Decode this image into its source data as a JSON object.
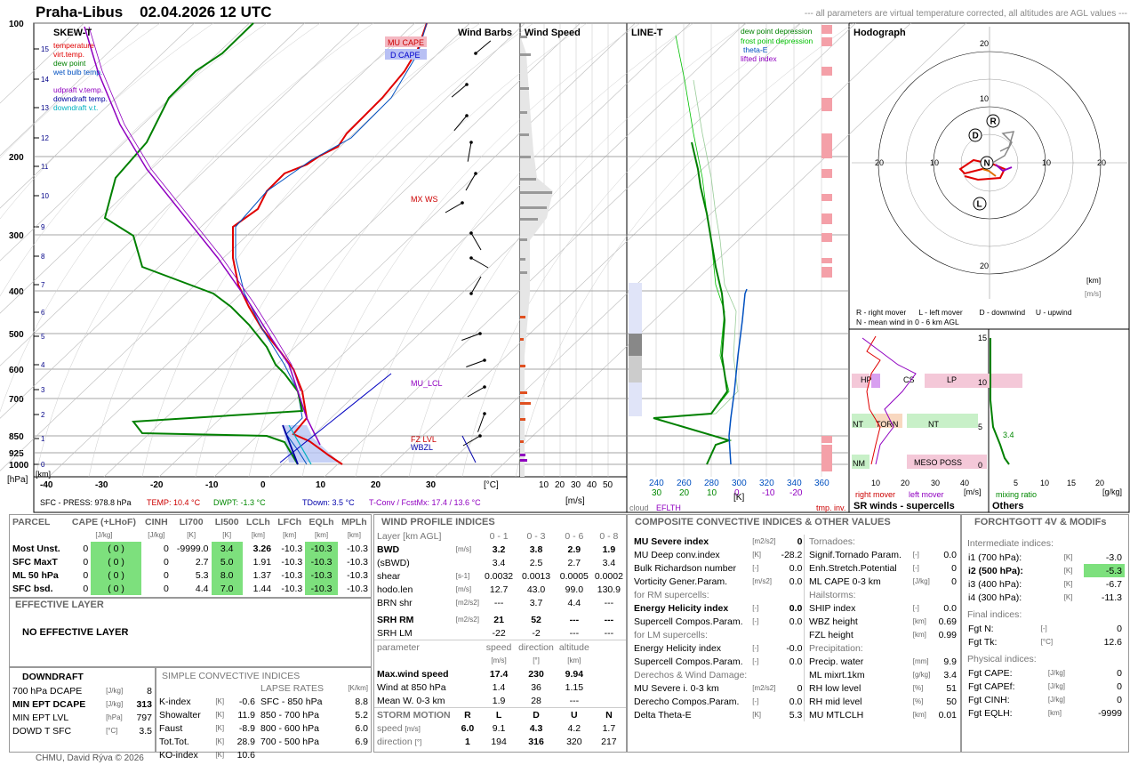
{
  "header": {
    "station": "Praha-Libus",
    "datetime": "02.04.2026 12 UTC",
    "note": "--- all parameters are virtual temperature corrected, all altitudes are AGL values ---"
  },
  "skewt": {
    "title": "SKEW-T",
    "legend": [
      {
        "label": "temperature",
        "color": "#e00000"
      },
      {
        "label": "virt.temp.",
        "color": "#e00000"
      },
      {
        "label": "dew point",
        "color": "#008000"
      },
      {
        "label": "wet bulb temp.",
        "color": "#0050c0"
      },
      {
        "label": "udpraft v.temp.",
        "color": "#9000c0"
      },
      {
        "label": "downdraft temp.",
        "color": "#0000a0"
      },
      {
        "label": "downdraft v.t.",
        "color": "#00b0c0"
      }
    ],
    "p_labels": [
      "100",
      "200",
      "300",
      "400",
      "500",
      "600",
      "700",
      "850",
      "925",
      "1000"
    ],
    "km_labels": [
      "15",
      "14",
      "13",
      "12",
      "11",
      "10",
      "9",
      "8",
      "7",
      "6",
      "5",
      "4",
      "3",
      "2",
      "1",
      "0"
    ],
    "t_labels": [
      "-40",
      "-30",
      "-20",
      "-10",
      "0",
      "10",
      "20",
      "30"
    ],
    "t_unit": "[°C]",
    "km_unit": "[km]",
    "p_unit": "[hPa]",
    "annotations": {
      "mu_cape": "MU CAPE",
      "d_cape": "D CAPE",
      "mx_ws": "MX WS",
      "mu_lcl": "MU_LCL",
      "fz_lvl": "FZ LVL",
      "wbzl": "WBZL"
    },
    "status": {
      "sfc_press": "SFC - PRESS: 978.8 hPa",
      "temp": "TEMP: 10.4 °C",
      "dwpt": "DWPT: -1.3 °C",
      "tdown": "TDown: 3.5 °C",
      "tconv": "T-Conv / FcstMx: 17.4 / 13.6 °C"
    }
  },
  "windbarbs": {
    "title": "Wind Barbs"
  },
  "windspeed": {
    "title": "Wind Speed",
    "ticks": [
      "10",
      "20",
      "30",
      "40",
      "50"
    ],
    "unit": "[m/s]"
  },
  "linet": {
    "title": "LINE-T",
    "legend": [
      {
        "label": "dew point depression",
        "color": "#008000"
      },
      {
        "label": "frost point depression",
        "color": "#00c000"
      },
      {
        "label": "theta-E",
        "color": "#0050c0"
      },
      {
        "label": "lifted index",
        "color": "#9000c0"
      }
    ],
    "ticks_top": [
      "240",
      "260",
      "280",
      "300",
      "320",
      "340",
      "360"
    ],
    "ticks_bottom": [
      "30",
      "20",
      "10",
      "0",
      "-10",
      "-20"
    ],
    "unit": "[K]",
    "cloud": "cloud",
    "eflth": "EFLTH",
    "tmp_inv": "tmp. inv."
  },
  "hodograph": {
    "title": "Hodograph",
    "ring_labels": [
      "20",
      "10",
      "10",
      "20"
    ],
    "unit_km": "[km]",
    "unit_ms": "[m/s]",
    "legend1": "R - right mover      L - left mover        D - downwind     U - upwind",
    "legend2": "N - mean wind in 0 - 6 km AGL",
    "markers": [
      "R",
      "D",
      "N",
      "L"
    ]
  },
  "srwinds": {
    "title": "SR winds - supercells",
    "y_ticks": [
      "15",
      "10",
      "5",
      "0"
    ],
    "x_ticks": [
      "10",
      "20",
      "30",
      "40"
    ],
    "unit": "[m/s]",
    "right_mover": "right mover",
    "left_mover": "left mover",
    "zones": [
      "HP",
      "CS",
      "LP",
      "NT",
      "TORN",
      "NT",
      "NM",
      "MESO POSS"
    ]
  },
  "others": {
    "title": "Others",
    "x_ticks": [
      "5",
      "10",
      "15",
      "20"
    ],
    "unit": "[g/kg]",
    "xlabel": "mixing ratio",
    "value": "3.4"
  },
  "parcel": {
    "title": "PARCEL",
    "headers": [
      "CAPE (+LHoF)",
      "CINH",
      "LI700",
      "LI500",
      "LCLh",
      "LFCh",
      "EQLh",
      "MPLh"
    ],
    "units": [
      "[J/kg]",
      "[J/kg]",
      "[K]",
      "[K]",
      "[km]",
      "[km]",
      "[km]",
      "[km]"
    ],
    "rows": [
      {
        "name": "Most Unst.",
        "cape": "0",
        "lhof": "( 0 )",
        "cinh": "0",
        "li700": "-9999.0",
        "li500": "3.4",
        "lclh": "3.26",
        "lfch": "-10.3",
        "eqlh": "-10.3",
        "mplh": "-10.3"
      },
      {
        "name": "SFC MaxT",
        "cape": "0",
        "lhof": "( 0 )",
        "cinh": "0",
        "li700": "2.7",
        "li500": "5.0",
        "lclh": "1.91",
        "lfch": "-10.3",
        "eqlh": "-10.3",
        "mplh": "-10.3"
      },
      {
        "name": "ML 50 hPa",
        "cape": "0",
        "lhof": "( 0 )",
        "cinh": "0",
        "li700": "5.3",
        "li500": "8.0",
        "lclh": "1.37",
        "lfch": "-10.3",
        "eqlh": "-10.3",
        "mplh": "-10.3"
      },
      {
        "name": "SFC bsd.",
        "cape": "0",
        "lhof": "( 0 )",
        "cinh": "0",
        "li700": "4.4",
        "li500": "7.0",
        "lclh": "1.44",
        "lfch": "-10.3",
        "eqlh": "-10.3",
        "mplh": "-10.3"
      }
    ]
  },
  "effective": {
    "title": "EFFECTIVE LAYER",
    "text": "NO EFFECTIVE LAYER"
  },
  "downdraft": {
    "title": "DOWNDRAFT",
    "rows": [
      {
        "label": "700 hPa DCAPE",
        "unit": "[J/kg]",
        "value": "8"
      },
      {
        "label": "MIN EPT DCAPE",
        "unit": "[J/kg]",
        "value": "313"
      },
      {
        "label": "MIN EPT LVL",
        "unit": "[hPa]",
        "value": "797"
      },
      {
        "label": "DOWD T SFC",
        "unit": "[°C]",
        "value": "3.5"
      }
    ]
  },
  "simple": {
    "title": "SIMPLE CONVECTIVE INDICES",
    "rows": [
      {
        "label": "K-index",
        "unit": "[K]",
        "value": "-0.6",
        "lr": "SFC - 850 hPa",
        "lrv": "8.8"
      },
      {
        "label": "Showalter",
        "unit": "[K]",
        "value": "11.9",
        "lr": "850 - 700 hPa",
        "lrv": "5.2"
      },
      {
        "label": "Faust",
        "unit": "[K]",
        "value": "-8.9",
        "lr": "800 - 600 hPa",
        "lrv": "6.0"
      },
      {
        "label": "Tot.Tot.",
        "unit": "[K]",
        "value": "28.9",
        "lr": "700 - 500 hPa",
        "lrv": "6.9"
      },
      {
        "label": "KO-index",
        "unit": "[K]",
        "value": "10.6",
        "lr": "",
        "lrv": ""
      }
    ],
    "lapse_title": "LAPSE RATES",
    "lapse_unit": "[K/km]"
  },
  "windprofile": {
    "title": "WIND PROFILE INDICES",
    "layer_header": "Layer [km AGL]",
    "layers": [
      "0 - 1",
      "0 - 3",
      "0 - 6",
      "0 - 8"
    ],
    "rows": [
      {
        "label": "BWD",
        "unit": "[m/s]",
        "values": [
          "3.2",
          "3.8",
          "2.9",
          "1.9"
        ],
        "bold": true
      },
      {
        "label": "(sBWD)",
        "unit": "",
        "values": [
          "3.4",
          "2.5",
          "2.7",
          "3.4"
        ],
        "bold": false
      },
      {
        "label": "shear",
        "unit": "[s-1]",
        "values": [
          "0.0032",
          "0.0013",
          "0.0005",
          "0.0002"
        ],
        "bold": false
      },
      {
        "label": "hodo.len",
        "unit": "[m/s]",
        "values": [
          "12.7",
          "43.0",
          "99.0",
          "130.9"
        ],
        "bold": false
      },
      {
        "label": "BRN shr",
        "unit": "[m2/s2]",
        "values": [
          "---",
          "3.7",
          "4.4",
          "---"
        ],
        "bold": false
      }
    ],
    "srh": [
      {
        "label": "SRH RM",
        "values": [
          "21",
          "52",
          "---",
          "---"
        ]
      },
      {
        "label": "SRH LM",
        "values": [
          "-22",
          "-2",
          "---",
          "---"
        ]
      }
    ],
    "srh_unit": "[m2/s2]",
    "param_header": [
      "parameter",
      "speed",
      "direction",
      "altitude"
    ],
    "param_units": [
      "[m/s]",
      "[°]",
      "[km]"
    ],
    "params": [
      {
        "label": "Max.wind speed",
        "values": [
          "17.4",
          "230",
          "9.94"
        ]
      },
      {
        "label": "Wind at 850 hPa",
        "values": [
          "1.4",
          "36",
          "1.15"
        ]
      },
      {
        "label": "Mean W. 0-3 km",
        "values": [
          "1.9",
          "28",
          "---"
        ]
      }
    ],
    "storm_title": "STORM MOTION",
    "storm_cols": [
      "R",
      "L",
      "D",
      "U",
      "N"
    ],
    "storm_speed": [
      "6.0",
      "9.1",
      "4.3",
      "4.2",
      "1.7"
    ],
    "storm_dir": [
      "1",
      "194",
      "316",
      "320",
      "217"
    ],
    "speed_label": "speed",
    "dir_label": "direction",
    "speed_unit": "[m/s]",
    "dir_unit": "[°]"
  },
  "composite": {
    "title": "COMPOSITE CONVECTIVE INDICES & OTHER VALUES",
    "left": [
      {
        "label": "MU Severe index",
        "unit": "[m2/s2]",
        "value": "0",
        "bold": true
      },
      {
        "label": "MU Deep conv.index",
        "unit": "[K]",
        "value": "-28.2"
      },
      {
        "label": "Bulk Richardson number",
        "unit": "[-]",
        "value": "0.0"
      },
      {
        "label": "Vorticity Gener.Param.",
        "unit": "[m/s2]",
        "value": "0.0"
      },
      {
        "section": "for RM supercells:"
      },
      {
        "label": "Energy Helicity index",
        "unit": "[-]",
        "value": "0.0",
        "bold": true
      },
      {
        "label": "Supercell Compos.Param.",
        "unit": "[-]",
        "value": "0.0"
      },
      {
        "section": "for LM supercells:"
      },
      {
        "label": "Energy Helicity index",
        "unit": "[-]",
        "value": "-0.0"
      },
      {
        "label": "Supercell Compos.Param.",
        "unit": "[-]",
        "value": "0.0"
      },
      {
        "section": "Derechos & Wind Damage:"
      },
      {
        "label": "MU Severe i. 0-3 km",
        "unit": "[m2/s2]",
        "value": "0"
      },
      {
        "label": "Derecho Compos.Param.",
        "unit": "[-]",
        "value": "0.0"
      },
      {
        "label": "Delta Theta-E",
        "unit": "[K]",
        "value": "5.3"
      }
    ],
    "right": [
      {
        "section": "Tornadoes:"
      },
      {
        "label": "Signif.Tornado Param.",
        "unit": "[-]",
        "value": "0.0"
      },
      {
        "label": "Enh.Stretch.Potential",
        "unit": "[-]",
        "value": "0"
      },
      {
        "label": "ML CAPE 0-3 km",
        "unit": "[J/kg]",
        "value": "0"
      },
      {
        "section": "Hailstorms:"
      },
      {
        "label": "SHIP index",
        "unit": "[-]",
        "value": "0.0"
      },
      {
        "label": "WBZ height",
        "unit": "[km]",
        "value": "0.69"
      },
      {
        "label": "FZL height",
        "unit": "[km]",
        "value": "0.99"
      },
      {
        "section": "Precipitation:"
      },
      {
        "label": "Precip. water",
        "unit": "[mm]",
        "value": "9.9"
      },
      {
        "label": "ML mixrt.1km",
        "unit": "[g/kg]",
        "value": "3.4"
      },
      {
        "label": "RH low level",
        "unit": "[%]",
        "value": "51"
      },
      {
        "label": "RH mid level",
        "unit": "[%]",
        "value": "50"
      },
      {
        "label": "MU MTLCLH",
        "unit": "[km]",
        "value": "0.01"
      }
    ]
  },
  "forchtgott": {
    "title": "FORCHTGOTT 4V & MODIFs",
    "inter_title": "Intermediate indices:",
    "inter": [
      {
        "label": "i1 (700 hPa):",
        "unit": "[K]",
        "value": "-3.0"
      },
      {
        "label": "i2 (500 hPa):",
        "unit": "[K]",
        "value": "-5.3",
        "hl": true
      },
      {
        "label": "i3 (400 hPa):",
        "unit": "[K]",
        "value": "-6.7"
      },
      {
        "label": "i4 (300 hPa):",
        "unit": "[K]",
        "value": "-11.3"
      }
    ],
    "final_title": "Final indices:",
    "final": [
      {
        "label": "Fgt N:",
        "unit": "[-]",
        "value": "0"
      },
      {
        "label": "Fgt Tk:",
        "unit": "[°C]",
        "value": "12.6"
      }
    ],
    "phys_title": "Physical indices:",
    "phys": [
      {
        "label": "Fgt CAPE:",
        "unit": "[J/kg]",
        "value": "0"
      },
      {
        "label": "Fgt CAPEf:",
        "unit": "[J/kg]",
        "value": "0"
      },
      {
        "label": "Fgt CINH:",
        "unit": "[J/kg]",
        "value": "0"
      },
      {
        "label": "Fgt EQLH:",
        "unit": "[km]",
        "value": "-9999"
      }
    ]
  },
  "footer": "CHMU, David Rýva © 2026"
}
